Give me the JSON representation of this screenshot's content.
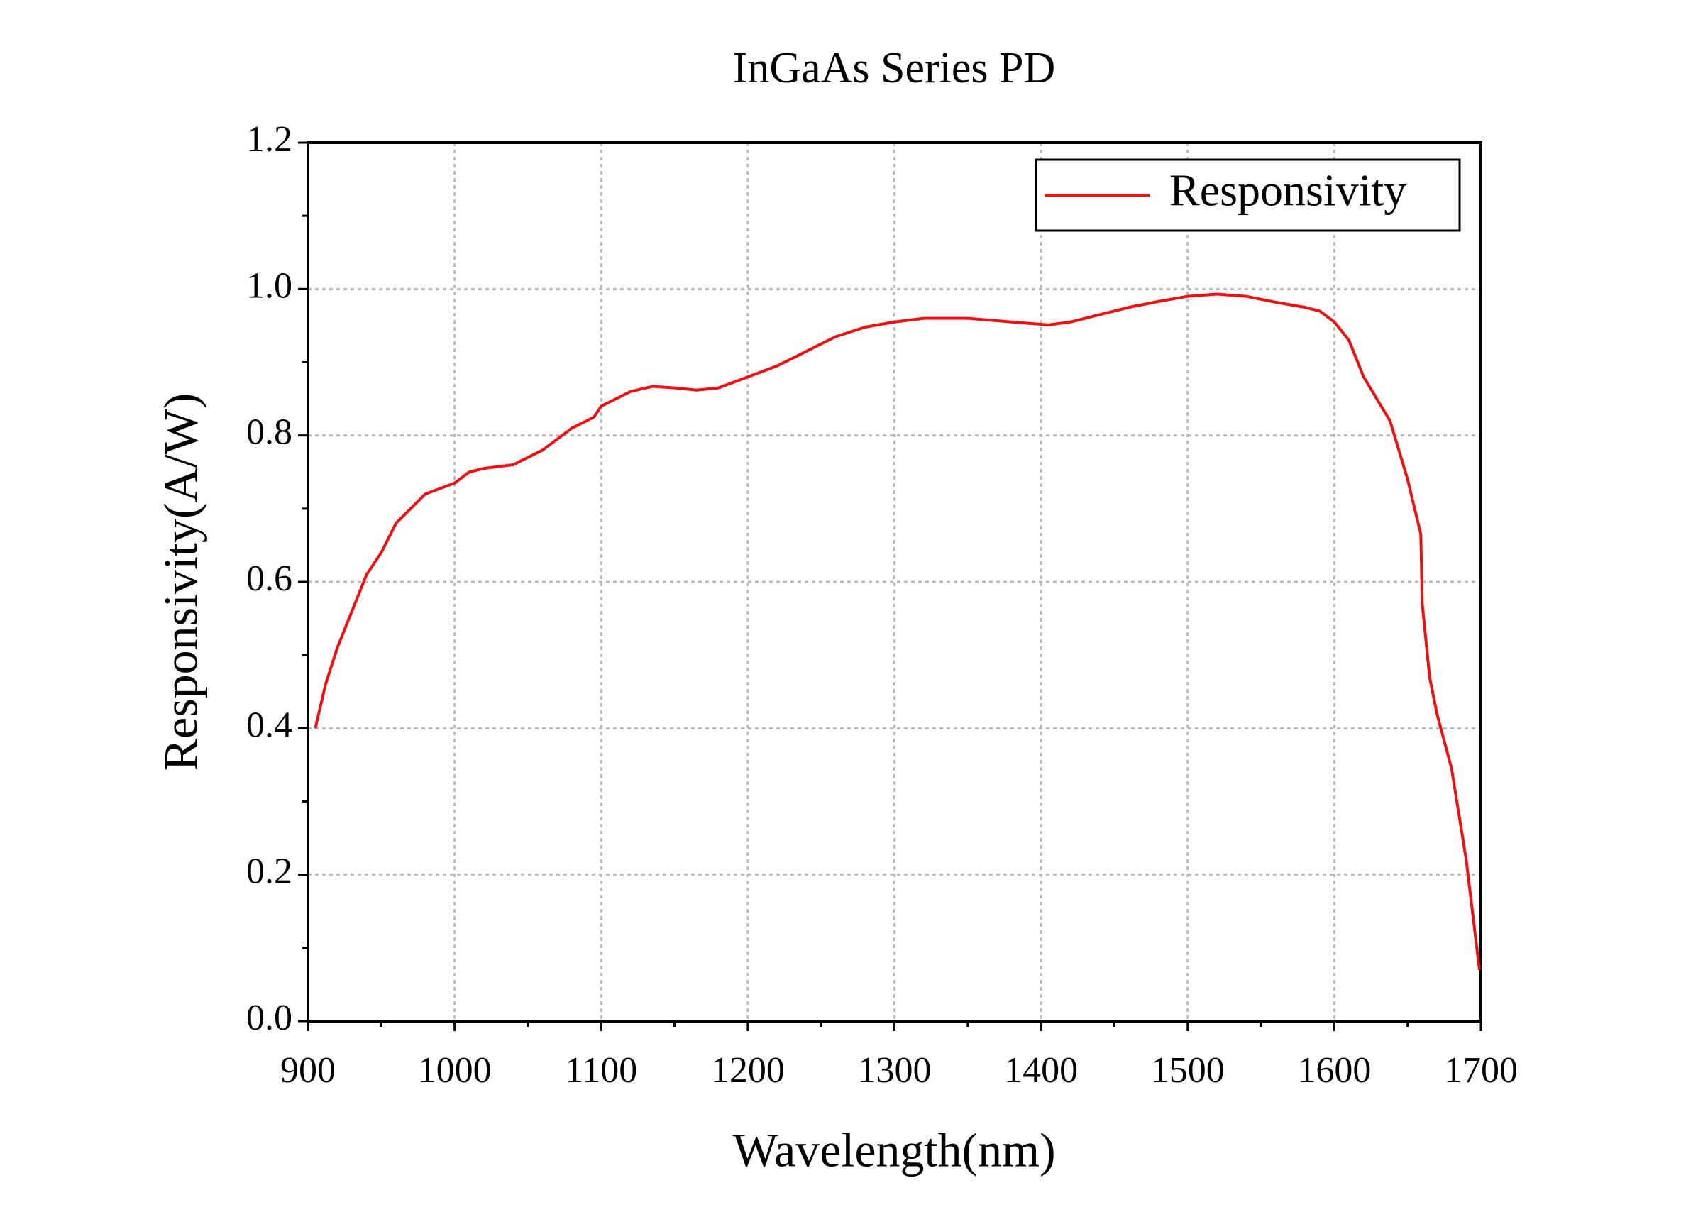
{
  "chart_data": {
    "type": "line",
    "title": "InGaAs Series PD",
    "x_label": "Wavelength(nm)",
    "y_label": "Responsivity(A/W)",
    "x": [
      905,
      912,
      920,
      930,
      940,
      950,
      960,
      970,
      980,
      1000,
      1010,
      1020,
      1040,
      1060,
      1080,
      1095,
      1100,
      1120,
      1135,
      1150,
      1165,
      1180,
      1200,
      1220,
      1240,
      1260,
      1280,
      1300,
      1320,
      1350,
      1380,
      1405,
      1420,
      1440,
      1460,
      1480,
      1500,
      1520,
      1540,
      1560,
      1580,
      1590,
      1600,
      1610,
      1620,
      1638,
      1650,
      1659,
      1660,
      1665,
      1670,
      1680,
      1690,
      1699
    ],
    "series": [
      {
        "name": "Responsivity",
        "color": "#ee1111",
        "values": [
          0.4,
          0.46,
          0.51,
          0.56,
          0.61,
          0.64,
          0.68,
          0.7,
          0.72,
          0.735,
          0.75,
          0.755,
          0.76,
          0.78,
          0.81,
          0.825,
          0.84,
          0.86,
          0.867,
          0.865,
          0.862,
          0.865,
          0.88,
          0.895,
          0.915,
          0.935,
          0.948,
          0.955,
          0.96,
          0.96,
          0.955,
          0.951,
          0.955,
          0.965,
          0.975,
          0.983,
          0.99,
          0.993,
          0.99,
          0.982,
          0.975,
          0.97,
          0.955,
          0.93,
          0.88,
          0.82,
          0.74,
          0.665,
          0.57,
          0.47,
          0.42,
          0.345,
          0.22,
          0.07
        ]
      }
    ],
    "xlim": [
      900,
      1700
    ],
    "xticks": [
      900,
      1000,
      1100,
      1200,
      1300,
      1400,
      1500,
      1600,
      1700
    ],
    "ylim": [
      0,
      1.2
    ],
    "yticks": [
      {
        "value": 0,
        "label": "0.0"
      },
      0.2,
      0.4,
      0.6,
      0.8,
      {
        "value": 1,
        "label": "1.0"
      },
      1.2
    ],
    "grid": true,
    "legend": "upper right"
  }
}
